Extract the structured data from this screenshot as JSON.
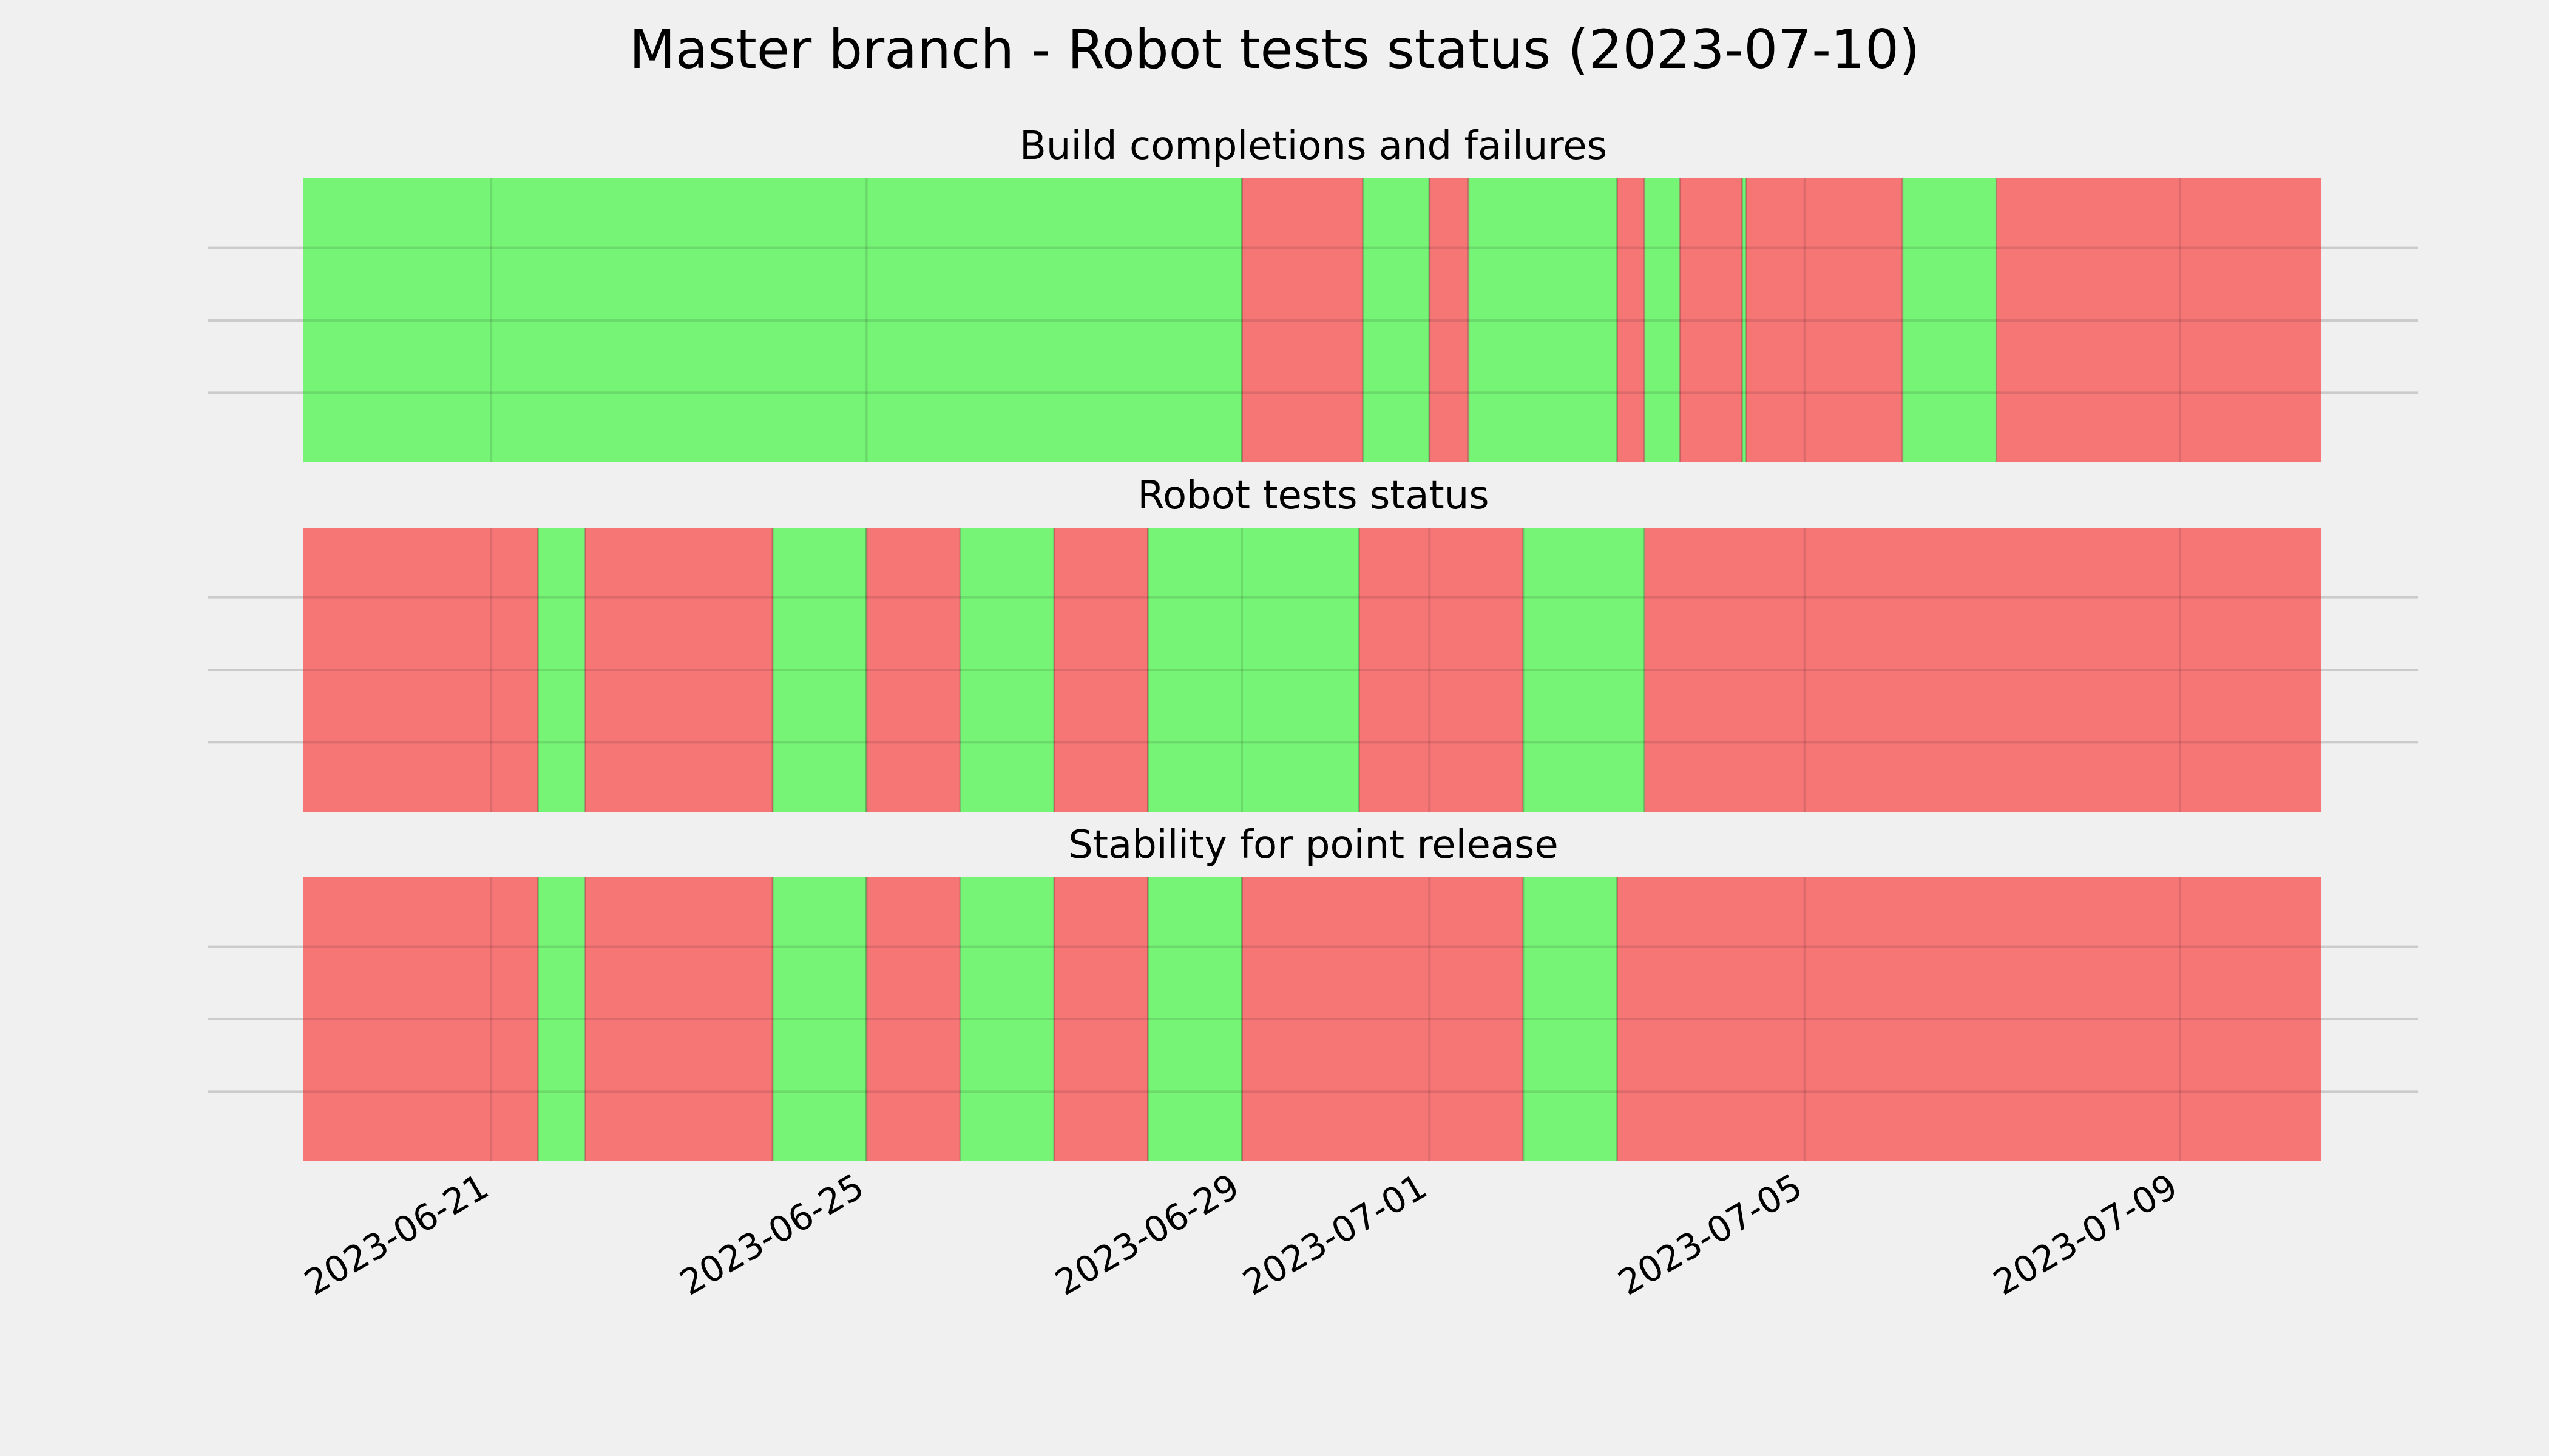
{
  "chart_data": {
    "type": "timeline",
    "title": "Master branch - Robot tests status (2023-07-10)",
    "colors": {
      "pass": "#76f476",
      "fail": "#f67676",
      "background": "#f0f0f0",
      "grid": "#cbcbcb"
    },
    "x_range": [
      "2023-06-19T00:00",
      "2023-07-10T12:00"
    ],
    "x_ticks": [
      "2023-06-21",
      "2023-06-25",
      "2023-06-29",
      "2023-07-01",
      "2023-07-05",
      "2023-07-09"
    ],
    "panels": [
      {
        "title": "Build completions and failures",
        "segments": [
          {
            "start": "2023-06-19T00:00",
            "end": "2023-06-29T00:00",
            "status": "pass"
          },
          {
            "start": "2023-06-29T00:00",
            "end": "2023-06-30T07:00",
            "status": "fail"
          },
          {
            "start": "2023-06-30T07:00",
            "end": "2023-07-01T00:00",
            "status": "pass"
          },
          {
            "start": "2023-07-01T00:00",
            "end": "2023-07-01T10:00",
            "status": "fail"
          },
          {
            "start": "2023-07-01T10:00",
            "end": "2023-07-03T00:00",
            "status": "pass"
          },
          {
            "start": "2023-07-03T00:00",
            "end": "2023-07-03T07:00",
            "status": "fail"
          },
          {
            "start": "2023-07-03T07:00",
            "end": "2023-07-03T16:00",
            "status": "pass"
          },
          {
            "start": "2023-07-03T16:00",
            "end": "2023-07-04T08:00",
            "status": "fail"
          },
          {
            "start": "2023-07-04T08:00",
            "end": "2023-07-04T09:00",
            "status": "pass"
          },
          {
            "start": "2023-07-04T09:00",
            "end": "2023-07-06T01:00",
            "status": "fail"
          },
          {
            "start": "2023-07-06T01:00",
            "end": "2023-07-07T01:00",
            "status": "pass"
          },
          {
            "start": "2023-07-07T01:00",
            "end": "2023-07-10T12:00",
            "status": "fail"
          }
        ]
      },
      {
        "title": "Robot tests status",
        "segments": [
          {
            "start": "2023-06-19T00:00",
            "end": "2023-06-21T12:00",
            "status": "fail"
          },
          {
            "start": "2023-06-21T12:00",
            "end": "2023-06-22T00:00",
            "status": "pass"
          },
          {
            "start": "2023-06-22T00:00",
            "end": "2023-06-24T00:00",
            "status": "fail"
          },
          {
            "start": "2023-06-24T00:00",
            "end": "2023-06-25T00:00",
            "status": "pass"
          },
          {
            "start": "2023-06-25T00:00",
            "end": "2023-06-26T00:00",
            "status": "fail"
          },
          {
            "start": "2023-06-26T00:00",
            "end": "2023-06-27T00:00",
            "status": "pass"
          },
          {
            "start": "2023-06-27T00:00",
            "end": "2023-06-28T00:00",
            "status": "fail"
          },
          {
            "start": "2023-06-28T00:00",
            "end": "2023-06-30T06:00",
            "status": "pass"
          },
          {
            "start": "2023-06-30T06:00",
            "end": "2023-07-02T00:00",
            "status": "fail"
          },
          {
            "start": "2023-07-02T00:00",
            "end": "2023-07-03T07:00",
            "status": "pass"
          },
          {
            "start": "2023-07-03T07:00",
            "end": "2023-07-10T12:00",
            "status": "fail"
          }
        ]
      },
      {
        "title": "Stability for point release",
        "segments": [
          {
            "start": "2023-06-19T00:00",
            "end": "2023-06-21T12:00",
            "status": "fail"
          },
          {
            "start": "2023-06-21T12:00",
            "end": "2023-06-22T00:00",
            "status": "pass"
          },
          {
            "start": "2023-06-22T00:00",
            "end": "2023-06-24T00:00",
            "status": "fail"
          },
          {
            "start": "2023-06-24T00:00",
            "end": "2023-06-25T00:00",
            "status": "pass"
          },
          {
            "start": "2023-06-25T00:00",
            "end": "2023-06-26T00:00",
            "status": "fail"
          },
          {
            "start": "2023-06-26T00:00",
            "end": "2023-06-27T00:00",
            "status": "pass"
          },
          {
            "start": "2023-06-27T00:00",
            "end": "2023-06-28T00:00",
            "status": "fail"
          },
          {
            "start": "2023-06-28T00:00",
            "end": "2023-06-29T00:00",
            "status": "pass"
          },
          {
            "start": "2023-06-29T00:00",
            "end": "2023-07-02T00:00",
            "status": "fail"
          },
          {
            "start": "2023-07-02T00:00",
            "end": "2023-07-03T00:00",
            "status": "pass"
          },
          {
            "start": "2023-07-03T00:00",
            "end": "2023-07-10T12:00",
            "status": "fail"
          }
        ]
      }
    ]
  }
}
